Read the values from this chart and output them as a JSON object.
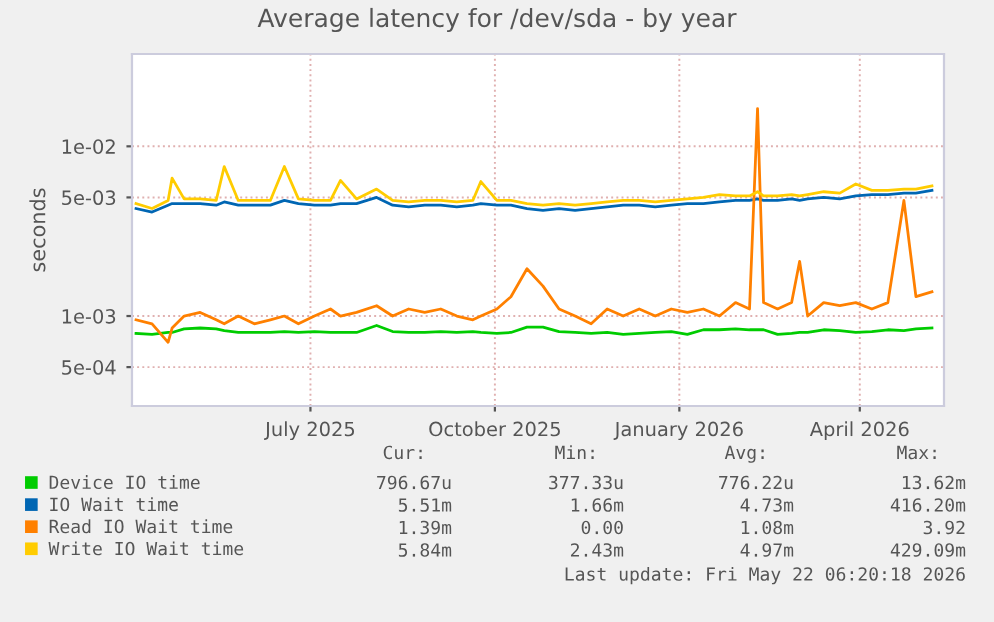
{
  "chart_data": {
    "type": "line",
    "title": "Average latency for /dev/sda - by year",
    "ylabel": "seconds",
    "x": [
      "2025-04-20",
      "2025-04-28",
      "2025-05-06",
      "2025-05-08",
      "2025-05-14",
      "2025-05-22",
      "2025-05-30",
      "2025-06-03",
      "2025-06-10",
      "2025-06-18",
      "2025-06-26",
      "2025-07-03",
      "2025-07-10",
      "2025-07-18",
      "2025-07-26",
      "2025-07-31",
      "2025-08-08",
      "2025-08-18",
      "2025-08-26",
      "2025-09-03",
      "2025-09-11",
      "2025-09-19",
      "2025-09-27",
      "2025-10-05",
      "2025-10-09",
      "2025-10-17",
      "2025-10-24",
      "2025-11-01",
      "2025-11-09",
      "2025-11-17",
      "2025-11-25",
      "2025-12-03",
      "2025-12-11",
      "2025-12-19",
      "2025-12-27",
      "2026-01-04",
      "2026-01-12",
      "2026-01-20",
      "2026-01-28",
      "2026-02-05",
      "2026-02-13",
      "2026-02-20",
      "2026-02-24",
      "2026-02-27",
      "2026-03-06",
      "2026-03-13",
      "2026-03-17",
      "2026-03-21",
      "2026-03-29",
      "2026-04-06",
      "2026-04-14",
      "2026-04-22",
      "2026-04-30",
      "2026-05-08",
      "2026-05-14",
      "2026-05-22"
    ],
    "series": [
      {
        "name": "Device IO time",
        "color": "#00cc00",
        "values": [
          0.00079,
          0.00078,
          0.0008,
          0.0008,
          0.00084,
          0.00085,
          0.00084,
          0.00082,
          0.0008,
          0.0008,
          0.0008,
          0.00081,
          0.0008,
          0.00081,
          0.0008,
          0.0008,
          0.0008,
          0.00088,
          0.00081,
          0.0008,
          0.0008,
          0.00081,
          0.0008,
          0.00081,
          0.0008,
          0.00079,
          0.0008,
          0.00086,
          0.00086,
          0.00081,
          0.0008,
          0.00079,
          0.0008,
          0.00078,
          0.00079,
          0.0008,
          0.00081,
          0.00078,
          0.00083,
          0.00083,
          0.00084,
          0.00083,
          0.00083,
          0.00083,
          0.00078,
          0.00079,
          0.0008,
          0.0008,
          0.00083,
          0.00082,
          0.0008,
          0.00081,
          0.00083,
          0.00082,
          0.00084,
          0.00085
        ]
      },
      {
        "name": "IO Wait time",
        "color": "#0066b3",
        "values": [
          0.0043,
          0.0041,
          0.0045,
          0.0046,
          0.0046,
          0.0046,
          0.0045,
          0.0047,
          0.0045,
          0.0045,
          0.0045,
          0.0048,
          0.0046,
          0.0045,
          0.0045,
          0.0046,
          0.0046,
          0.005,
          0.0045,
          0.0044,
          0.0045,
          0.0045,
          0.0044,
          0.0045,
          0.0046,
          0.0045,
          0.0045,
          0.0043,
          0.0042,
          0.0043,
          0.0042,
          0.0043,
          0.0044,
          0.0045,
          0.0045,
          0.0044,
          0.0045,
          0.0046,
          0.0046,
          0.0047,
          0.0048,
          0.0048,
          0.0049,
          0.0048,
          0.0048,
          0.0049,
          0.0048,
          0.0049,
          0.005,
          0.0049,
          0.0051,
          0.0052,
          0.0052,
          0.0053,
          0.0053,
          0.0055
        ]
      },
      {
        "name": "Read IO Wait time",
        "color": "#ff8000",
        "values": [
          0.00095,
          0.0009,
          0.0007,
          0.00085,
          0.001,
          0.00105,
          0.00095,
          0.0009,
          0.001,
          0.0009,
          0.00095,
          0.001,
          0.0009,
          0.001,
          0.0011,
          0.001,
          0.00105,
          0.00115,
          0.001,
          0.0011,
          0.00105,
          0.0011,
          0.001,
          0.00095,
          0.001,
          0.0011,
          0.0013,
          0.0019,
          0.0015,
          0.0011,
          0.001,
          0.0009,
          0.0011,
          0.001,
          0.0011,
          0.001,
          0.0011,
          0.00105,
          0.0011,
          0.001,
          0.0012,
          0.0011,
          0.0167,
          0.0012,
          0.0011,
          0.0012,
          0.0021,
          0.001,
          0.0012,
          0.00115,
          0.0012,
          0.0011,
          0.0012,
          0.0048,
          0.0013,
          0.00139
        ]
      },
      {
        "name": "Write IO Wait time",
        "color": "#ffcc00",
        "values": [
          0.0046,
          0.0043,
          0.0048,
          0.0065,
          0.0049,
          0.0049,
          0.0048,
          0.0076,
          0.0048,
          0.0048,
          0.0048,
          0.0076,
          0.0049,
          0.0048,
          0.0048,
          0.0063,
          0.0049,
          0.0056,
          0.0048,
          0.0047,
          0.0048,
          0.0048,
          0.0047,
          0.0048,
          0.0062,
          0.0048,
          0.0048,
          0.0046,
          0.0045,
          0.0046,
          0.0045,
          0.0046,
          0.0047,
          0.0048,
          0.0048,
          0.0047,
          0.0048,
          0.0049,
          0.005,
          0.0052,
          0.0051,
          0.0051,
          0.0054,
          0.0051,
          0.0051,
          0.0052,
          0.0051,
          0.0052,
          0.0054,
          0.0053,
          0.006,
          0.0055,
          0.0055,
          0.0056,
          0.0056,
          0.00584
        ]
      }
    ],
    "log": "y",
    "ylim": [
      0.000295,
      0.035
    ],
    "yticks": [
      {
        "value": 0.0005,
        "label": "5e-04"
      },
      {
        "value": 0.001,
        "label": "1e-03"
      },
      {
        "value": 0.005,
        "label": "5e-03"
      },
      {
        "value": 0.01,
        "label": "1e-02"
      }
    ],
    "xlim": [
      "2025-04-18",
      "2026-05-28"
    ],
    "xticks": [
      {
        "value": "2025-07-16",
        "label": "July 2025"
      },
      {
        "value": "2025-10-16",
        "label": "October 2025"
      },
      {
        "value": "2026-01-16",
        "label": "January 2026"
      },
      {
        "value": "2026-04-16",
        "label": "April 2026"
      }
    ],
    "grid": true,
    "legend": "bottom left",
    "marker": "none",
    "line_style": "solid",
    "annotations": [
      "Cur:",
      "Min:",
      "Avg:",
      "Max:",
      "796.67u",
      "377.33u",
      "776.22u",
      "13.62m",
      "5.51m",
      "1.66m",
      "4.73m",
      "416.20m",
      "1.39m",
      "0.00",
      "1.08m",
      "3.92",
      "5.84m",
      "2.43m",
      "4.97m",
      "429.09m",
      "Last update: Fri May 22 06:20:18 2026"
    ]
  }
}
